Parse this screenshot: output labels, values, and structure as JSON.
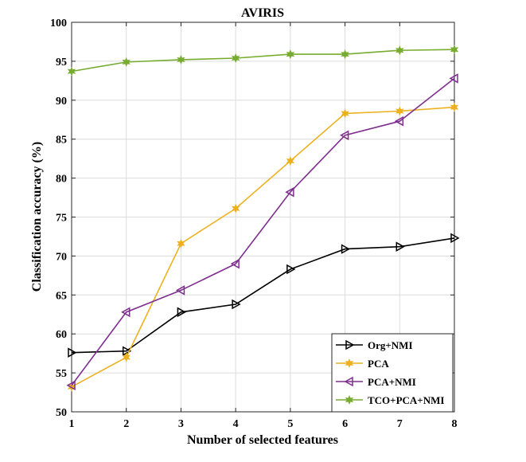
{
  "chart_data": {
    "type": "line",
    "title": "AVIRIS",
    "xlabel": "Number of selected features",
    "ylabel": "Classification accuracy (%)",
    "x": [
      1,
      2,
      3,
      4,
      5,
      6,
      7,
      8
    ],
    "xlim": [
      1,
      8
    ],
    "ylim": [
      50,
      100
    ],
    "xticks": [
      "1",
      "2",
      "3",
      "4",
      "5",
      "6",
      "7",
      "8"
    ],
    "yticks": [
      "50",
      "55",
      "60",
      "65",
      "70",
      "75",
      "80",
      "85",
      "90",
      "95",
      "100"
    ],
    "grid": true,
    "legend_position": "bottom-right",
    "series": [
      {
        "name": "Org+NMI",
        "color": "#000000",
        "marker": "triangle-right",
        "values": [
          57.6,
          57.8,
          62.8,
          63.8,
          68.3,
          70.9,
          71.2,
          72.3
        ]
      },
      {
        "name": "PCA",
        "color": "#EDB120",
        "marker": "hexagram",
        "values": [
          53.2,
          57.0,
          71.6,
          76.1,
          82.2,
          88.3,
          88.6,
          89.1
        ]
      },
      {
        "name": "PCA+NMI",
        "color": "#7E2F8E",
        "marker": "triangle-left",
        "values": [
          53.4,
          62.8,
          65.6,
          69.0,
          78.2,
          85.5,
          87.3,
          92.8
        ]
      },
      {
        "name": "TCO+PCA+NMI",
        "color": "#77AC30",
        "marker": "hexagram",
        "values": [
          93.7,
          94.9,
          95.2,
          95.4,
          95.9,
          95.9,
          96.4,
          96.5
        ]
      }
    ]
  }
}
